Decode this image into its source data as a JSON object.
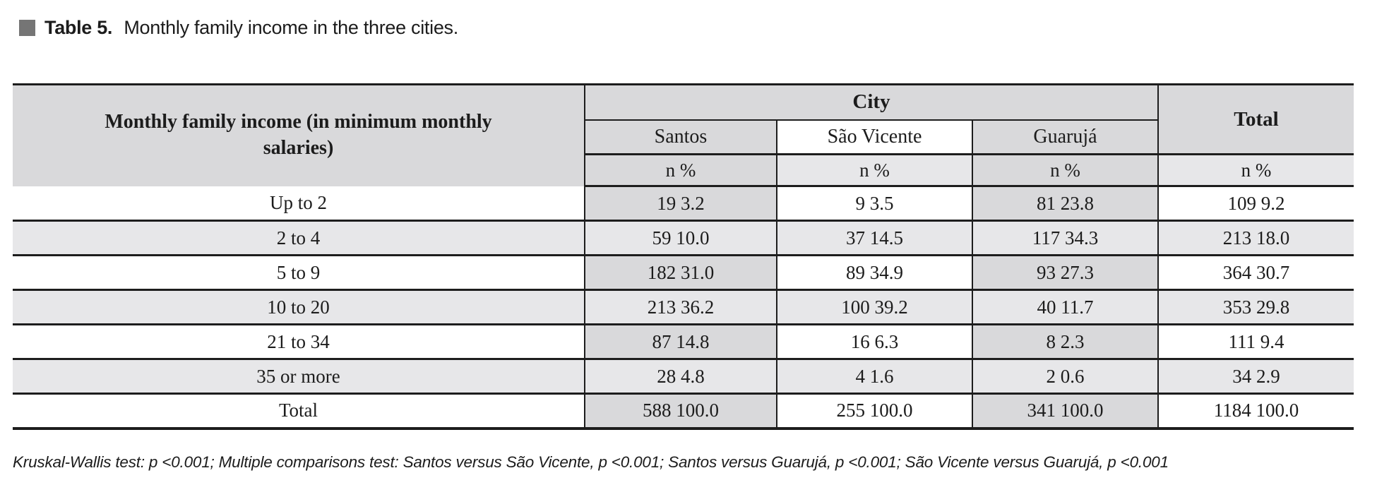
{
  "title": {
    "label": "Table 5.",
    "text": "Monthly family income in the three cities."
  },
  "table": {
    "stub_header": "Monthly family income (in minimum monthly salaries)",
    "group_header": "City",
    "total_header": "Total",
    "cities": [
      "Santos",
      "São Vicente",
      "Guarujá"
    ],
    "measure_label": "n %",
    "rows": [
      {
        "label": "Up to 2",
        "cells": [
          "19 3.2",
          "9 3.5",
          "81 23.8",
          "109 9.2"
        ]
      },
      {
        "label": "2 to 4",
        "cells": [
          "59 10.0",
          "37 14.5",
          "117 34.3",
          "213 18.0"
        ]
      },
      {
        "label": "5 to 9",
        "cells": [
          "182 31.0",
          "89 34.9",
          "93 27.3",
          "364 30.7"
        ]
      },
      {
        "label": "10 to 20",
        "cells": [
          "213 36.2",
          "100 39.2",
          "40 11.7",
          "353 29.8"
        ]
      },
      {
        "label": "21 to 34",
        "cells": [
          "87 14.8",
          "16 6.3",
          "8 2.3",
          "111 9.4"
        ]
      },
      {
        "label": "35 or more",
        "cells": [
          "28 4.8",
          "4 1.6",
          "2 0.6",
          "34 2.9"
        ]
      },
      {
        "label": "Total",
        "cells": [
          "588 100.0",
          "255 100.0",
          "341 100.0",
          "1184 100.0"
        ]
      }
    ]
  },
  "footnote": "Kruskal-Wallis test: p <0.001; Multiple comparisons test: Santos versus São Vicente, p <0.001; Santos versus Guarujá, p <0.001; São Vicente versus Guarujá, p <0.001",
  "colors": {
    "header_gray": "#d9d9db",
    "stripe_gray": "#e7e7e9",
    "border": "#1d1d1d",
    "bullet_gray": "#757575"
  }
}
